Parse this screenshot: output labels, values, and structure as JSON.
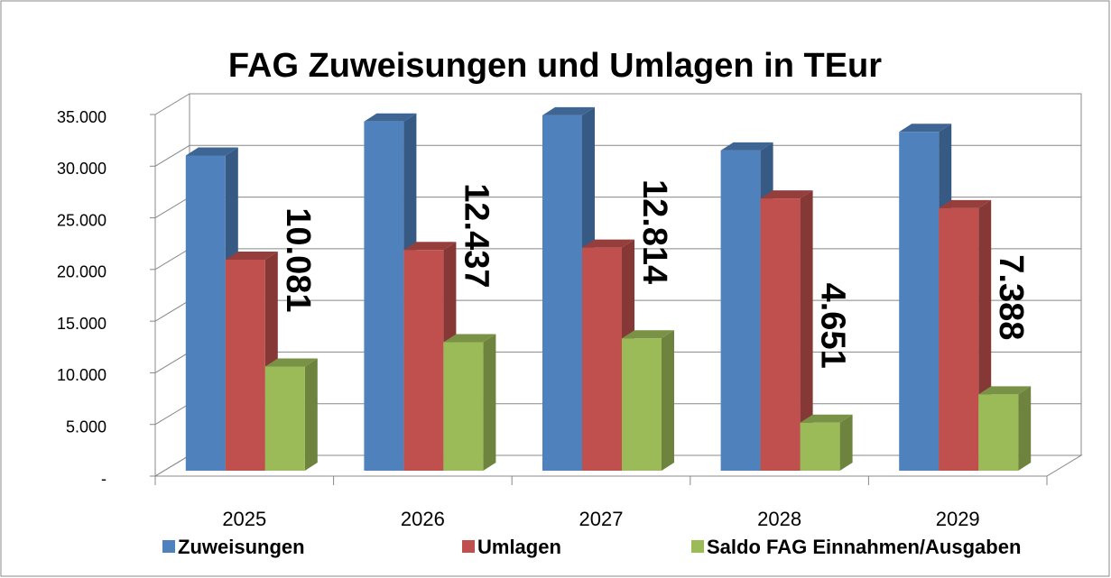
{
  "chart_data": {
    "type": "bar3d",
    "title": "FAG Zuweisungen und Umlagen in TEur",
    "categories": [
      "2025",
      "2026",
      "2027",
      "2028",
      "2029"
    ],
    "series": [
      {
        "name": "Zuweisungen",
        "color": "#4f81bd",
        "values": [
          30500,
          33800,
          34400,
          31000,
          32800
        ]
      },
      {
        "name": "Umlagen",
        "color": "#c0504d",
        "values": [
          20419,
          21363,
          21586,
          26349,
          25412
        ]
      },
      {
        "name": "Saldo FAG Einnahmen/Ausgaben",
        "color": "#9bbb59",
        "values": [
          10081,
          12437,
          12814,
          4651,
          7388
        ],
        "value_labels": [
          "10.081",
          "12.437",
          "12.814",
          "4.651",
          "7.388"
        ]
      }
    ],
    "ylim": [
      0,
      35000
    ],
    "yticks": [
      {
        "value": 0,
        "label": "-"
      },
      {
        "value": 5000,
        "label": "5.000"
      },
      {
        "value": 10000,
        "label": "10.000"
      },
      {
        "value": 15000,
        "label": "15.000"
      },
      {
        "value": 20000,
        "label": "20.000"
      },
      {
        "value": 25000,
        "label": "25.000"
      },
      {
        "value": 30000,
        "label": "30.000"
      },
      {
        "value": 35000,
        "label": "35.000"
      }
    ],
    "grid": true,
    "legend": "bottom"
  }
}
